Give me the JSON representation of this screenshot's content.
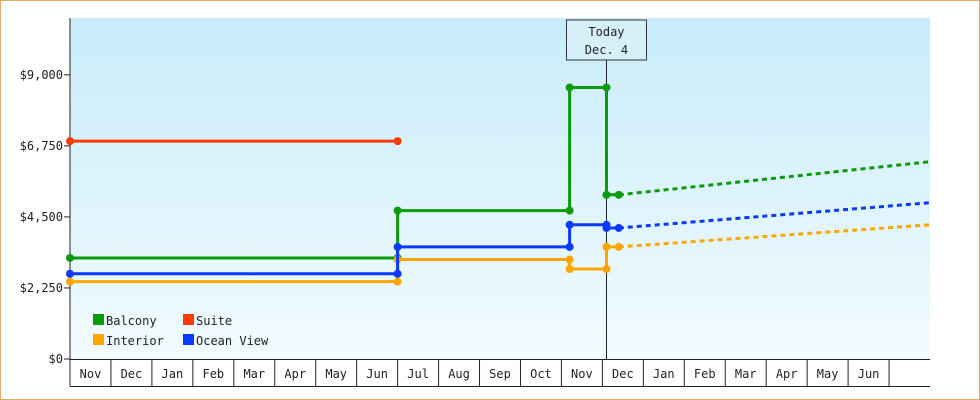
{
  "chart_data": {
    "type": "line",
    "title": "",
    "xlabel": "",
    "ylabel": "",
    "ylim": [
      0,
      10800
    ],
    "y_ticks": [
      {
        "value": 0,
        "label": "$0"
      },
      {
        "value": 2250,
        "label": "$2,250"
      },
      {
        "value": 4500,
        "label": "$4,500"
      },
      {
        "value": 6750,
        "label": "$6,750"
      },
      {
        "value": 9000,
        "label": "$9,000"
      }
    ],
    "x_categories": [
      "Nov",
      "Dec",
      "Jan",
      "Feb",
      "Mar",
      "Apr",
      "May",
      "Jun",
      "Jul",
      "Aug",
      "Sep",
      "Oct",
      "Nov",
      "Dec",
      "Jan",
      "Feb",
      "Mar",
      "Apr",
      "May",
      "Jun"
    ],
    "x_range": [
      0,
      21
    ],
    "today_marker": {
      "line1": "Today",
      "line2": "Dec. 4",
      "x": 13.1
    },
    "legend_position": "bottom-left",
    "series": [
      {
        "name": "Balcony",
        "color": "#0a9a0a",
        "points": [
          [
            0,
            3200
          ],
          [
            8,
            3200
          ],
          [
            8,
            4700
          ],
          [
            12.2,
            4700
          ],
          [
            12.2,
            8600
          ],
          [
            13.1,
            8600
          ],
          [
            13.1,
            5200
          ],
          [
            13.4,
            5200
          ]
        ],
        "markers": [
          [
            0,
            3200
          ],
          [
            8,
            3200
          ],
          [
            8,
            4700
          ],
          [
            12.2,
            4700
          ],
          [
            12.2,
            8600
          ],
          [
            13.1,
            8600
          ],
          [
            13.1,
            5200
          ],
          [
            13.4,
            5200
          ]
        ],
        "projection": [
          [
            13.4,
            5200
          ],
          [
            21,
            6250
          ]
        ]
      },
      {
        "name": "Suite",
        "color": "#ff3a0a",
        "points": [
          [
            0,
            6900
          ],
          [
            8,
            6900
          ]
        ],
        "markers": [
          [
            0,
            6900
          ],
          [
            8,
            6900
          ]
        ],
        "projection": []
      },
      {
        "name": "Interior",
        "color": "#ffa500",
        "points": [
          [
            0,
            2450
          ],
          [
            8,
            2450
          ],
          [
            8,
            3150
          ],
          [
            12.2,
            3150
          ],
          [
            12.2,
            2850
          ],
          [
            13.1,
            2850
          ],
          [
            13.1,
            3550
          ],
          [
            13.4,
            3550
          ]
        ],
        "markers": [
          [
            0,
            2450
          ],
          [
            8,
            2450
          ],
          [
            8,
            3150
          ],
          [
            12.2,
            3150
          ],
          [
            12.2,
            2850
          ],
          [
            13.1,
            2850
          ],
          [
            13.1,
            3550
          ],
          [
            13.4,
            3550
          ]
        ],
        "projection": [
          [
            13.4,
            3550
          ],
          [
            21,
            4250
          ]
        ]
      },
      {
        "name": "Ocean View",
        "color": "#0a3aff",
        "points": [
          [
            0,
            2700
          ],
          [
            8,
            2700
          ],
          [
            8,
            3550
          ],
          [
            12.2,
            3550
          ],
          [
            12.2,
            4250
          ],
          [
            13.1,
            4250
          ],
          [
            13.1,
            4150
          ],
          [
            13.4,
            4150
          ]
        ],
        "markers": [
          [
            0,
            2700
          ],
          [
            8,
            2700
          ],
          [
            8,
            3550
          ],
          [
            12.2,
            3550
          ],
          [
            12.2,
            4250
          ],
          [
            13.1,
            4250
          ],
          [
            13.1,
            4150
          ],
          [
            13.4,
            4150
          ]
        ],
        "projection": [
          [
            13.4,
            4150
          ],
          [
            21,
            4950
          ]
        ]
      }
    ],
    "legend": [
      {
        "name": "Balcony",
        "color": "#0a9a0a"
      },
      {
        "name": "Suite",
        "color": "#ff3a0a"
      },
      {
        "name": "Interior",
        "color": "#ffa500"
      },
      {
        "name": "Ocean View",
        "color": "#0a3aff"
      }
    ]
  }
}
